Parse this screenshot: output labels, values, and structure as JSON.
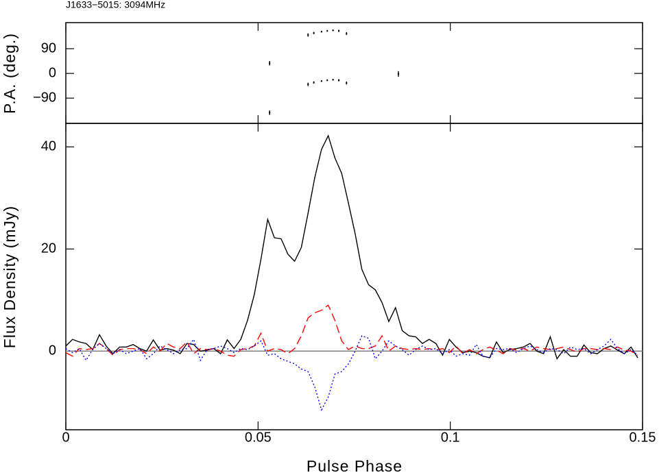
{
  "chart_data": [
    {
      "type": "scatter",
      "title": "J1633−5015: 3094MHz",
      "ylabel": "P.A. (deg.)",
      "x": [
        0.053,
        0.053,
        0.063,
        0.0645,
        0.0665,
        0.068,
        0.0695,
        0.071,
        0.073,
        0.063,
        0.0645,
        0.0665,
        0.068,
        0.0695,
        0.071,
        0.073,
        0.0865
      ],
      "values": [
        37,
        -143,
        140,
        147,
        152,
        155,
        157,
        155,
        145,
        -40,
        -33,
        -28,
        -25,
        -23,
        -25,
        -35,
        -2
      ],
      "errors": [
        8,
        8,
        6,
        4,
        3,
        3,
        3,
        4,
        5,
        6,
        4,
        3,
        3,
        3,
        4,
        5,
        10
      ],
      "color": "#000000",
      "xlim": [
        0,
        0.15
      ],
      "xticks": [
        0,
        0.05,
        0.1,
        0.15
      ],
      "ylim": [
        -182,
        185
      ],
      "yticks": [
        {
          "value": -90,
          "label": "−90"
        },
        0,
        90
      ]
    },
    {
      "type": "line",
      "xlabel": "Pulse Phase",
      "ylabel": "Flux Density (mJy)",
      "x": [
        0,
        0.00175,
        0.0035,
        0.00525,
        0.007,
        0.00875,
        0.0105,
        0.01225,
        0.014,
        0.01575,
        0.0175,
        0.01925,
        0.021,
        0.02275,
        0.0245,
        0.02625,
        0.028,
        0.02975,
        0.0315,
        0.03325,
        0.035,
        0.03675,
        0.0385,
        0.04025,
        0.042,
        0.04375,
        0.0455,
        0.04725,
        0.049,
        0.05075,
        0.0525,
        0.05425,
        0.056,
        0.05775,
        0.0595,
        0.06125,
        0.063,
        0.06475,
        0.0665,
        0.06825,
        0.07,
        0.07175,
        0.0735,
        0.07525,
        0.077,
        0.07875,
        0.0805,
        0.08225,
        0.084,
        0.08575,
        0.0875,
        0.08925,
        0.091,
        0.09275,
        0.0945,
        0.09625,
        0.098,
        0.09975,
        0.1015,
        0.10325,
        0.105,
        0.10675,
        0.1085,
        0.11025,
        0.112,
        0.11375,
        0.1155,
        0.11725,
        0.119,
        0.12075,
        0.1225,
        0.12425,
        0.126,
        0.12775,
        0.1295,
        0.13125,
        0.133,
        0.13475,
        0.1365,
        0.13825,
        0.14,
        0.14175,
        0.1435,
        0.14525,
        0.147,
        0.14875
      ],
      "series": [
        {
          "color": "#000000",
          "dash": "solid",
          "values": [
            1,
            2.3,
            1.8,
            1.5,
            0.3,
            3.2,
            1,
            -0.5,
            0.8,
            0.8,
            1.3,
            0.5,
            0,
            2.2,
            0.2,
            0.5,
            0.2,
            -0.5,
            1.5,
            1.3,
            0,
            0.2,
            0.5,
            -0.5,
            2.2,
            0.5,
            2.3,
            6,
            11,
            18,
            25.8,
            22.2,
            22,
            19,
            17.6,
            20.3,
            27,
            34,
            39.5,
            42.2,
            37.8,
            34.8,
            29,
            23,
            16,
            13,
            12,
            9.5,
            5.8,
            8.5,
            4,
            3,
            2.8,
            1.5,
            2.3,
            1.5,
            -0.8,
            2.3,
            0.8,
            -0.3,
            0,
            -0.3,
            -1,
            -1.3,
            1.8,
            -0.3,
            0.3,
            0.5,
            0.8,
            1.5,
            0,
            -0.5,
            2.8,
            -1.5,
            0.3,
            -1,
            -1,
            1.2,
            -0.3,
            -0.5,
            0.5,
            1,
            0.2,
            -0.5,
            0.8,
            -1.3
          ]
        },
        {
          "color": "#ff0000",
          "dash": "dashed",
          "values": [
            -0.3,
            -1,
            0.5,
            0.3,
            0.5,
            1.5,
            0.5,
            -0.8,
            0.3,
            0.5,
            0.5,
            0.3,
            -0.5,
            0.8,
            0,
            1.5,
            0.8,
            0.5,
            1.8,
            -0.5,
            0.5,
            0.3,
            0.5,
            0,
            -0.8,
            -1,
            0.3,
            0.5,
            1,
            3.5,
            0,
            0.5,
            0.3,
            -0.5,
            0.5,
            3,
            6.5,
            7.5,
            8,
            9,
            6,
            2,
            0.3,
            1,
            0.5,
            0.5,
            1,
            3,
            0,
            1,
            0.5,
            0.3,
            0.5,
            0.3,
            0.5,
            0.2,
            0.5,
            -0.3,
            1,
            -0.5,
            0.3,
            -0.5,
            0.3,
            0.8,
            0.2,
            -0.5,
            0.5,
            0.2,
            0.5,
            0,
            0.8,
            0.5,
            0.3,
            0.5,
            0.8,
            0.3,
            -0.2,
            0.5,
            0.5,
            0.3,
            0.5,
            0.3,
            0.8,
            0.2,
            0,
            -0.8
          ]
        },
        {
          "color": "#0000ff",
          "dash": "dotted",
          "values": [
            0.5,
            -0.3,
            0.5,
            -1.8,
            0.3,
            1.5,
            0.5,
            -0.5,
            0.3,
            -0.5,
            0,
            0.5,
            -1.5,
            -0.5,
            1,
            0.3,
            -0.5,
            0.3,
            0.5,
            2.3,
            -1.8,
            0.3,
            0.5,
            1,
            0.5,
            -0.3,
            0.5,
            0.3,
            1,
            2,
            -0.8,
            -0.5,
            -1.5,
            -2,
            -2.5,
            -3.5,
            -4,
            -7,
            -11.5,
            -9,
            -4.5,
            -4,
            -2.5,
            0,
            3,
            2.5,
            -1.5,
            0,
            2,
            1,
            0.3,
            -0.8,
            0.3,
            1,
            0.3,
            0.5,
            -0.5,
            0.3,
            -1,
            -0.5,
            -0.8,
            1.3,
            -1,
            -1.3,
            0.5,
            0.3,
            0.5,
            -0.3,
            0.5,
            1,
            0.3,
            -0.3,
            0.5,
            0.3,
            -0.5,
            0.8,
            0.3,
            0.5,
            -0.5,
            0.3,
            1,
            2.3,
            0.5,
            -0.5,
            0.3,
            -0.8
          ]
        }
      ],
      "xlim": [
        0,
        0.15
      ],
      "xticks": [
        0,
        0.05,
        0.1,
        0.15
      ],
      "ylim": [
        -15.4,
        44.6
      ],
      "yticks": [
        0,
        20,
        40
      ]
    }
  ]
}
